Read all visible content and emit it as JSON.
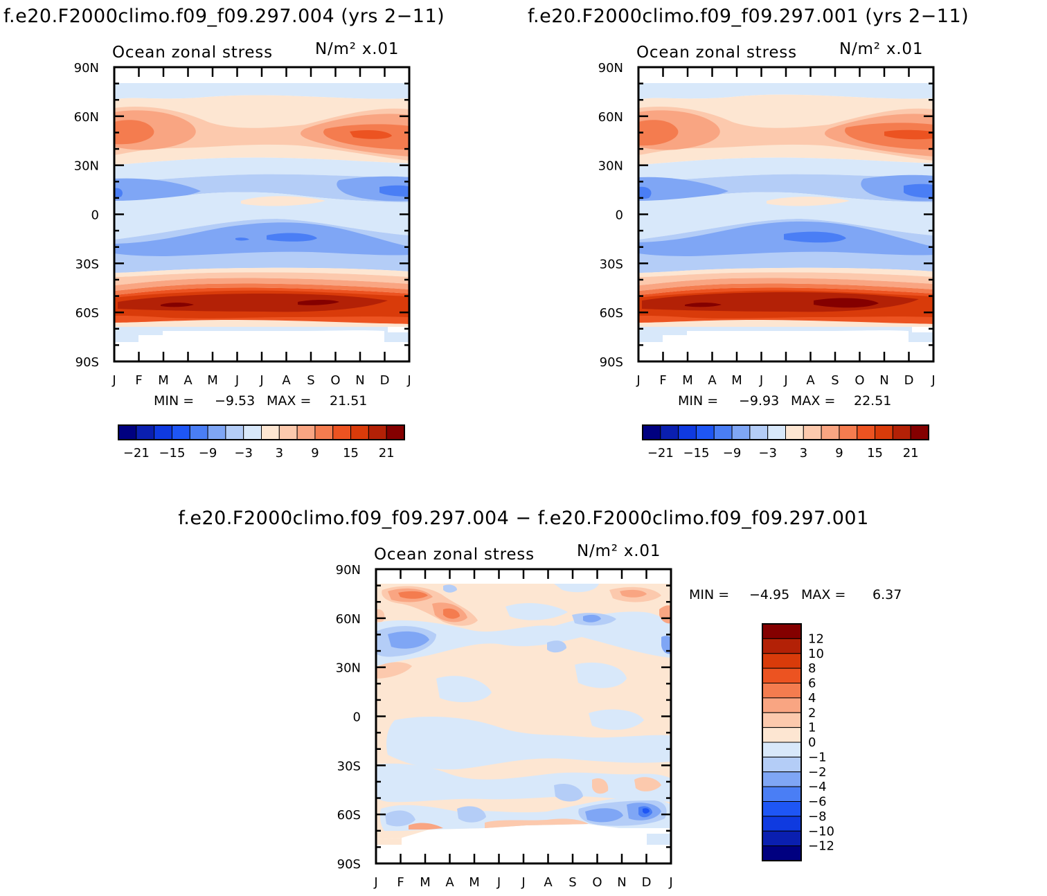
{
  "colors": {
    "scale": [
      "#000080",
      "#0a1fb0",
      "#0f3ae0",
      "#1e56f5",
      "#4a7ef5",
      "#7fa6f5",
      "#b4cdf7",
      "#d8e8fa",
      "#fde6d2",
      "#fcc9ad",
      "#f9a582",
      "#f47c4f",
      "#ec5321",
      "#d93b0a",
      "#b32106",
      "#840000"
    ]
  },
  "panels": [
    {
      "id": "top-left",
      "title": "f.e20.F2000climo.f09_f09.297.004 (yrs 2−11)",
      "left_label": "Ocean zonal stress",
      "right_label": "N/m² x.01",
      "stats": {
        "min_label": "MIN =",
        "min": "−9.53",
        "max_label": "MAX =",
        "max": "21.51"
      },
      "colorbar_labels": [
        "−21",
        "−15",
        "−9",
        "−3",
        "3",
        "9",
        "15",
        "21"
      ]
    },
    {
      "id": "top-right",
      "title": "f.e20.F2000climo.f09_f09.297.001 (yrs 2−11)",
      "left_label": "Ocean zonal stress",
      "right_label": "N/m² x.01",
      "stats": {
        "min_label": "MIN =",
        "min": "−9.93",
        "max_label": "MAX =",
        "max": "22.51"
      },
      "colorbar_labels": [
        "−21",
        "−15",
        "−9",
        "−3",
        "3",
        "9",
        "15",
        "21"
      ]
    },
    {
      "id": "bottom-diff",
      "title": "f.e20.F2000climo.f09_f09.297.004 − f.e20.F2000climo.f09_f09.297.001",
      "left_label": "Ocean zonal stress",
      "right_label": "N/m² x.01",
      "stats": {
        "min_label": "MIN =",
        "min": "−4.95",
        "max_label": "MAX =",
        "max": "6.37"
      },
      "colorbar_labels": [
        "12",
        "10",
        "8",
        "6",
        "4",
        "2",
        "1",
        "0",
        "−1",
        "−2",
        "−4",
        "−6",
        "−8",
        "−10",
        "−12"
      ]
    }
  ],
  "chart_data": [
    {
      "type": "heatmap",
      "title": "f.e20.F2000climo.f09_f09.297.004 (yrs 2−11)",
      "xlabel": "",
      "ylabel": "",
      "x_ticks": [
        "J",
        "F",
        "M",
        "A",
        "M",
        "J",
        "J",
        "A",
        "S",
        "O",
        "N",
        "D",
        "J"
      ],
      "y_ticks": [
        "90N",
        "60N",
        "30N",
        "0",
        "30S",
        "60S",
        "90S"
      ],
      "ylim": [
        -90,
        90
      ],
      "levels": [
        -21,
        -18,
        -15,
        -12,
        -9,
        -6,
        -3,
        0,
        3,
        6,
        9,
        12,
        15,
        18,
        21
      ],
      "min": -9.53,
      "max": 21.51,
      "latitude_profile_annual": [
        {
          "lat": 78,
          "value": -1.5
        },
        {
          "lat": 68,
          "value": 1.5
        },
        {
          "lat": 55,
          "value": 7.5
        },
        {
          "lat": 45,
          "value": 4.5
        },
        {
          "lat": 35,
          "value": 1.5
        },
        {
          "lat": 27,
          "value": -1.5
        },
        {
          "lat": 15,
          "value": -6.5
        },
        {
          "lat": 7,
          "value": 1.5
        },
        {
          "lat": 0,
          "value": -1.5
        },
        {
          "lat": -12,
          "value": -4.5
        },
        {
          "lat": -18,
          "value": -7.5
        },
        {
          "lat": -28,
          "value": -4.5
        },
        {
          "lat": -40,
          "value": 4.5
        },
        {
          "lat": -47,
          "value": 10.5
        },
        {
          "lat": -52,
          "value": 16.5
        },
        {
          "lat": -55,
          "value": 19.5
        },
        {
          "lat": -60,
          "value": 16.5
        },
        {
          "lat": -64,
          "value": 10.5
        },
        {
          "lat": -67,
          "value": 4.5
        },
        {
          "lat": -72,
          "value": -1.5
        }
      ]
    },
    {
      "type": "heatmap",
      "title": "f.e20.F2000climo.f09_f09.297.001 (yrs 2−11)",
      "xlabel": "",
      "ylabel": "",
      "x_ticks": [
        "J",
        "F",
        "M",
        "A",
        "M",
        "J",
        "J",
        "A",
        "S",
        "O",
        "N",
        "D",
        "J"
      ],
      "y_ticks": [
        "90N",
        "60N",
        "30N",
        "0",
        "30S",
        "60S",
        "90S"
      ],
      "ylim": [
        -90,
        90
      ],
      "levels": [
        -21,
        -18,
        -15,
        -12,
        -9,
        -6,
        -3,
        0,
        3,
        6,
        9,
        12,
        15,
        18,
        21
      ],
      "min": -9.93,
      "max": 22.51,
      "latitude_profile_annual": [
        {
          "lat": 78,
          "value": -1.5
        },
        {
          "lat": 68,
          "value": 1.5
        },
        {
          "lat": 55,
          "value": 7.5
        },
        {
          "lat": 45,
          "value": 4.5
        },
        {
          "lat": 35,
          "value": 1.5
        },
        {
          "lat": 27,
          "value": -1.5
        },
        {
          "lat": 15,
          "value": -6.5
        },
        {
          "lat": 7,
          "value": 1.5
        },
        {
          "lat": 0,
          "value": -1.5
        },
        {
          "lat": -12,
          "value": -4.5
        },
        {
          "lat": -18,
          "value": -7.5
        },
        {
          "lat": -28,
          "value": -4.5
        },
        {
          "lat": -40,
          "value": 4.5
        },
        {
          "lat": -47,
          "value": 10.5
        },
        {
          "lat": -52,
          "value": 16.5
        },
        {
          "lat": -55,
          "value": 20.5
        },
        {
          "lat": -60,
          "value": 16.5
        },
        {
          "lat": -64,
          "value": 10.5
        },
        {
          "lat": -67,
          "value": 4.5
        },
        {
          "lat": -72,
          "value": -1.5
        }
      ]
    },
    {
      "type": "heatmap",
      "title": "f.e20.F2000climo.f09_f09.297.004 − f.e20.F2000climo.f09_f09.297.001",
      "xlabel": "",
      "ylabel": "",
      "x_ticks": [
        "J",
        "F",
        "M",
        "A",
        "M",
        "J",
        "J",
        "A",
        "S",
        "O",
        "N",
        "D",
        "J"
      ],
      "y_ticks": [
        "90N",
        "60N",
        "30N",
        "0",
        "30S",
        "60S",
        "90S"
      ],
      "ylim": [
        -90,
        90
      ],
      "levels": [
        -12,
        -10,
        -8,
        -6,
        -4,
        -2,
        -1,
        0,
        1,
        2,
        4,
        6,
        8,
        10,
        12
      ],
      "min": -4.95,
      "max": 6.37,
      "latitude_profile_annual": [
        {
          "lat": 78,
          "value": 0.5
        },
        {
          "lat": 65,
          "value": 0.5
        },
        {
          "lat": 45,
          "value": -0.5
        },
        {
          "lat": 30,
          "value": 0.5
        },
        {
          "lat": 15,
          "value": 0.5
        },
        {
          "lat": 0,
          "value": 0.5
        },
        {
          "lat": -20,
          "value": -0.5
        },
        {
          "lat": -35,
          "value": 0.5
        },
        {
          "lat": -55,
          "value": 0.5
        },
        {
          "lat": -65,
          "value": -0.5
        },
        {
          "lat": -72,
          "value": 0.5
        }
      ]
    }
  ]
}
